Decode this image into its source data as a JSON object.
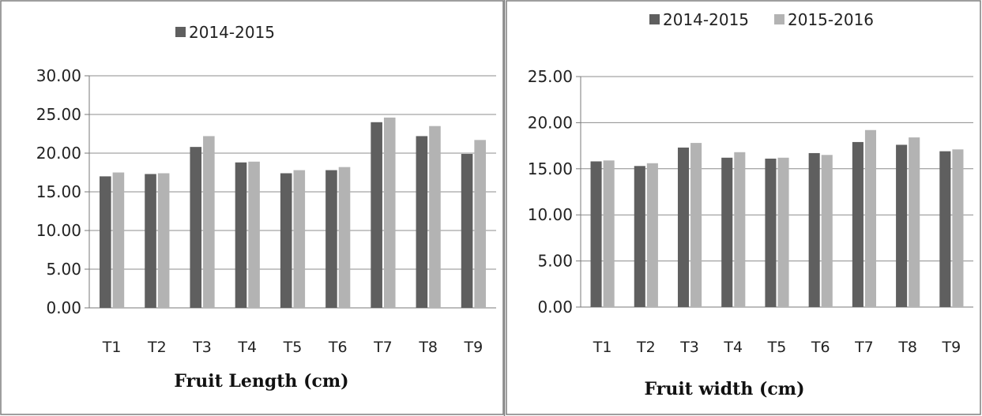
{
  "colors": {
    "s2014": "#5f5f5f",
    "s2015": "#b3b3b3",
    "grid": "#8c8c8c",
    "frame": "#7f7f7f"
  },
  "chart_data": [
    {
      "type": "bar",
      "xlabel": "Fruit Length (cm)",
      "ylabel": "",
      "ylim": [
        0,
        30
      ],
      "yticks": [
        "0.00",
        "5.00",
        "10.00",
        "15.00",
        "20.00",
        "25.00",
        "30.00"
      ],
      "grid": true,
      "legend": "top",
      "legend_entries": [
        "2014-2015"
      ],
      "categories": [
        "T1",
        "T2",
        "T3",
        "T4",
        "T5",
        "T6",
        "T7",
        "T8",
        "T9"
      ],
      "series": [
        {
          "name": "2014-2015",
          "values": [
            17.0,
            17.3,
            20.8,
            18.8,
            17.4,
            17.8,
            24.0,
            22.2,
            19.9
          ]
        },
        {
          "values": [
            17.5,
            17.4,
            22.2,
            18.9,
            17.8,
            18.2,
            24.6,
            23.5,
            21.7
          ]
        }
      ]
    },
    {
      "type": "bar",
      "xlabel": "Fruit width (cm)",
      "ylabel": "",
      "ylim": [
        0,
        25
      ],
      "yticks": [
        "0.00",
        "5.00",
        "10.00",
        "15.00",
        "20.00",
        "25.00"
      ],
      "grid": true,
      "legend": "top",
      "legend_entries": [
        "2014-2015",
        "2015-2016"
      ],
      "categories": [
        "T1",
        "T2",
        "T3",
        "T4",
        "T5",
        "T6",
        "T7",
        "T8",
        "T9"
      ],
      "series": [
        {
          "name": "2014-2015",
          "values": [
            15.8,
            15.3,
            17.3,
            16.2,
            16.1,
            16.7,
            17.9,
            17.6,
            16.9
          ]
        },
        {
          "name": "2015-2016",
          "values": [
            15.9,
            15.6,
            17.8,
            16.8,
            16.2,
            16.5,
            19.2,
            18.4,
            17.1
          ]
        }
      ]
    }
  ]
}
